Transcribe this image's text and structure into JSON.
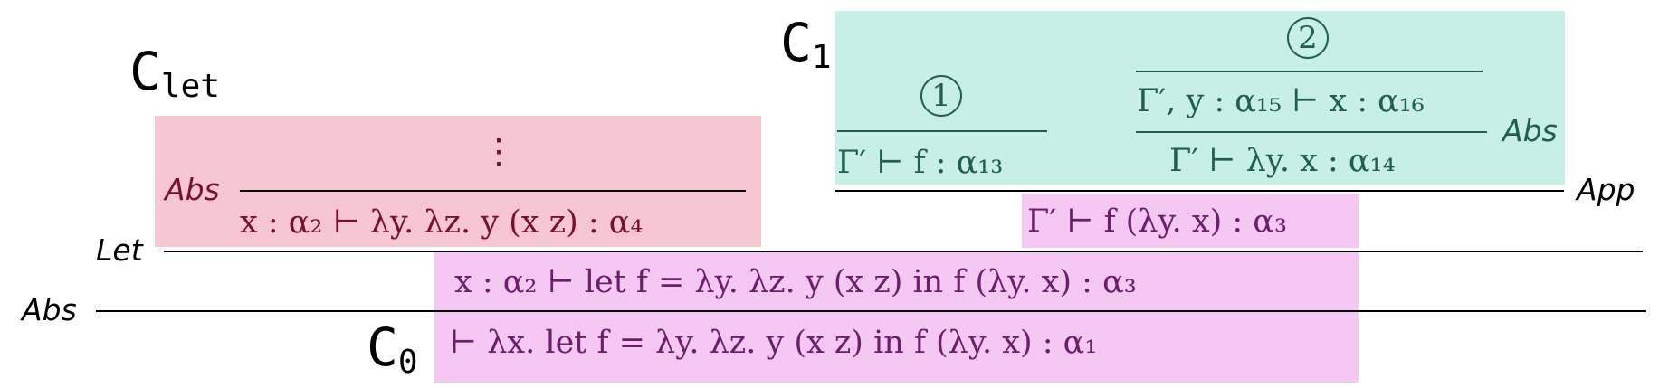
{
  "colors": {
    "red_box": "#f7c6d3",
    "red_text": "#7a1030",
    "teal_box": "#c8eee8",
    "teal_text": "#1f5f52",
    "pink_box": "#f5c8f3",
    "pink_text": "#6b1f6b",
    "rule_line": "#000000"
  },
  "labels": {
    "c_let": "C",
    "c_let_sub": "let",
    "c_1": "C",
    "c_1_sub": "1",
    "c_0": "C",
    "c_0_sub": "0",
    "abs_red": "Abs",
    "abs_teal": "Abs",
    "app": "App",
    "let": "Let",
    "abs_bottom": "Abs"
  },
  "red_box": {
    "premise": "⋮",
    "conclusion": "x : α₂ ⊢ λy. λz. y (x z) : α₄"
  },
  "teal_box": {
    "premise_left_marker": "1",
    "premise_left": "Γ′ ⊢ f : α₁₃",
    "premise_right_marker": "2",
    "premise_right_top": "Γ′, y : α₁₅ ⊢ x : α₁₆",
    "premise_right_bottom": "Γ′ ⊢ λy. x : α₁₄"
  },
  "app_conclusion": "Γ′ ⊢ f (λy. x) : α₃",
  "let_conclusion": "x : α₂ ⊢ let f = λy. λz. y (x z) in f (λy. x) : α₃",
  "final_conclusion": "⊢ λx. let f = λy. λz. y (x z) in f (λy. x) : α₁"
}
